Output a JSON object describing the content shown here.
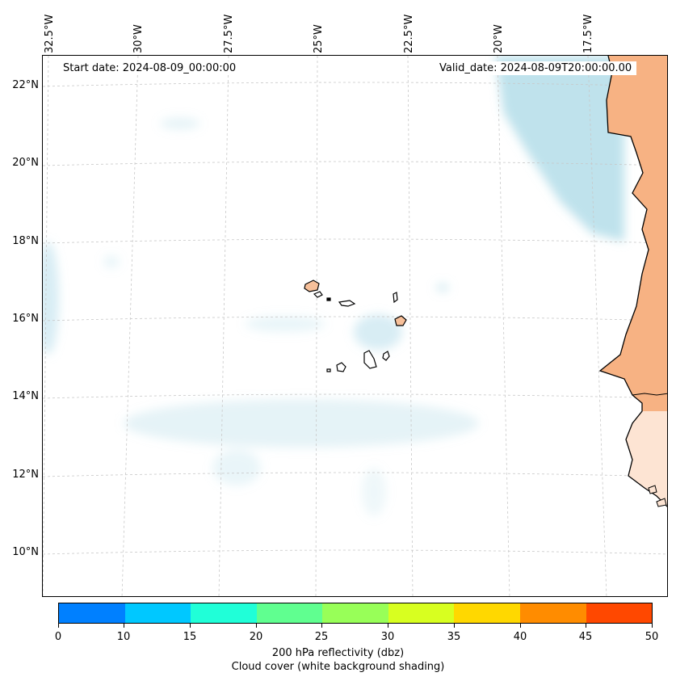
{
  "annotations": {
    "start_date": "Start date: 2024-08-09_00:00:00",
    "valid_date": "Valid_date: 2024-08-09T20:00:00.00"
  },
  "longitude_labels": [
    "32.5°W",
    "30°W",
    "27.5°W",
    "25°W",
    "22.5°W",
    "20°W",
    "17.5°W"
  ],
  "latitude_labels": [
    "22°N",
    "20°N",
    "18°N",
    "16°N",
    "14°N",
    "12°N",
    "10°N"
  ],
  "colorbar": {
    "ticks": [
      "0",
      "10",
      "15",
      "20",
      "25",
      "30",
      "35",
      "40",
      "45",
      "50"
    ],
    "colors": [
      "#0080ff",
      "#00c8ff",
      "#20ffd8",
      "#60ff90",
      "#98ff58",
      "#d8ff20",
      "#ffd800",
      "#ff8c00",
      "#ff4800"
    ],
    "label_line1": "200 hPa reflectivity (dbz)",
    "label_line2": "Cloud cover (white background shading)"
  },
  "colors": {
    "cloud": "#a9d8e6",
    "land": "#f4a46a",
    "coast": "#000000",
    "grid": "#c8c8c8"
  }
}
